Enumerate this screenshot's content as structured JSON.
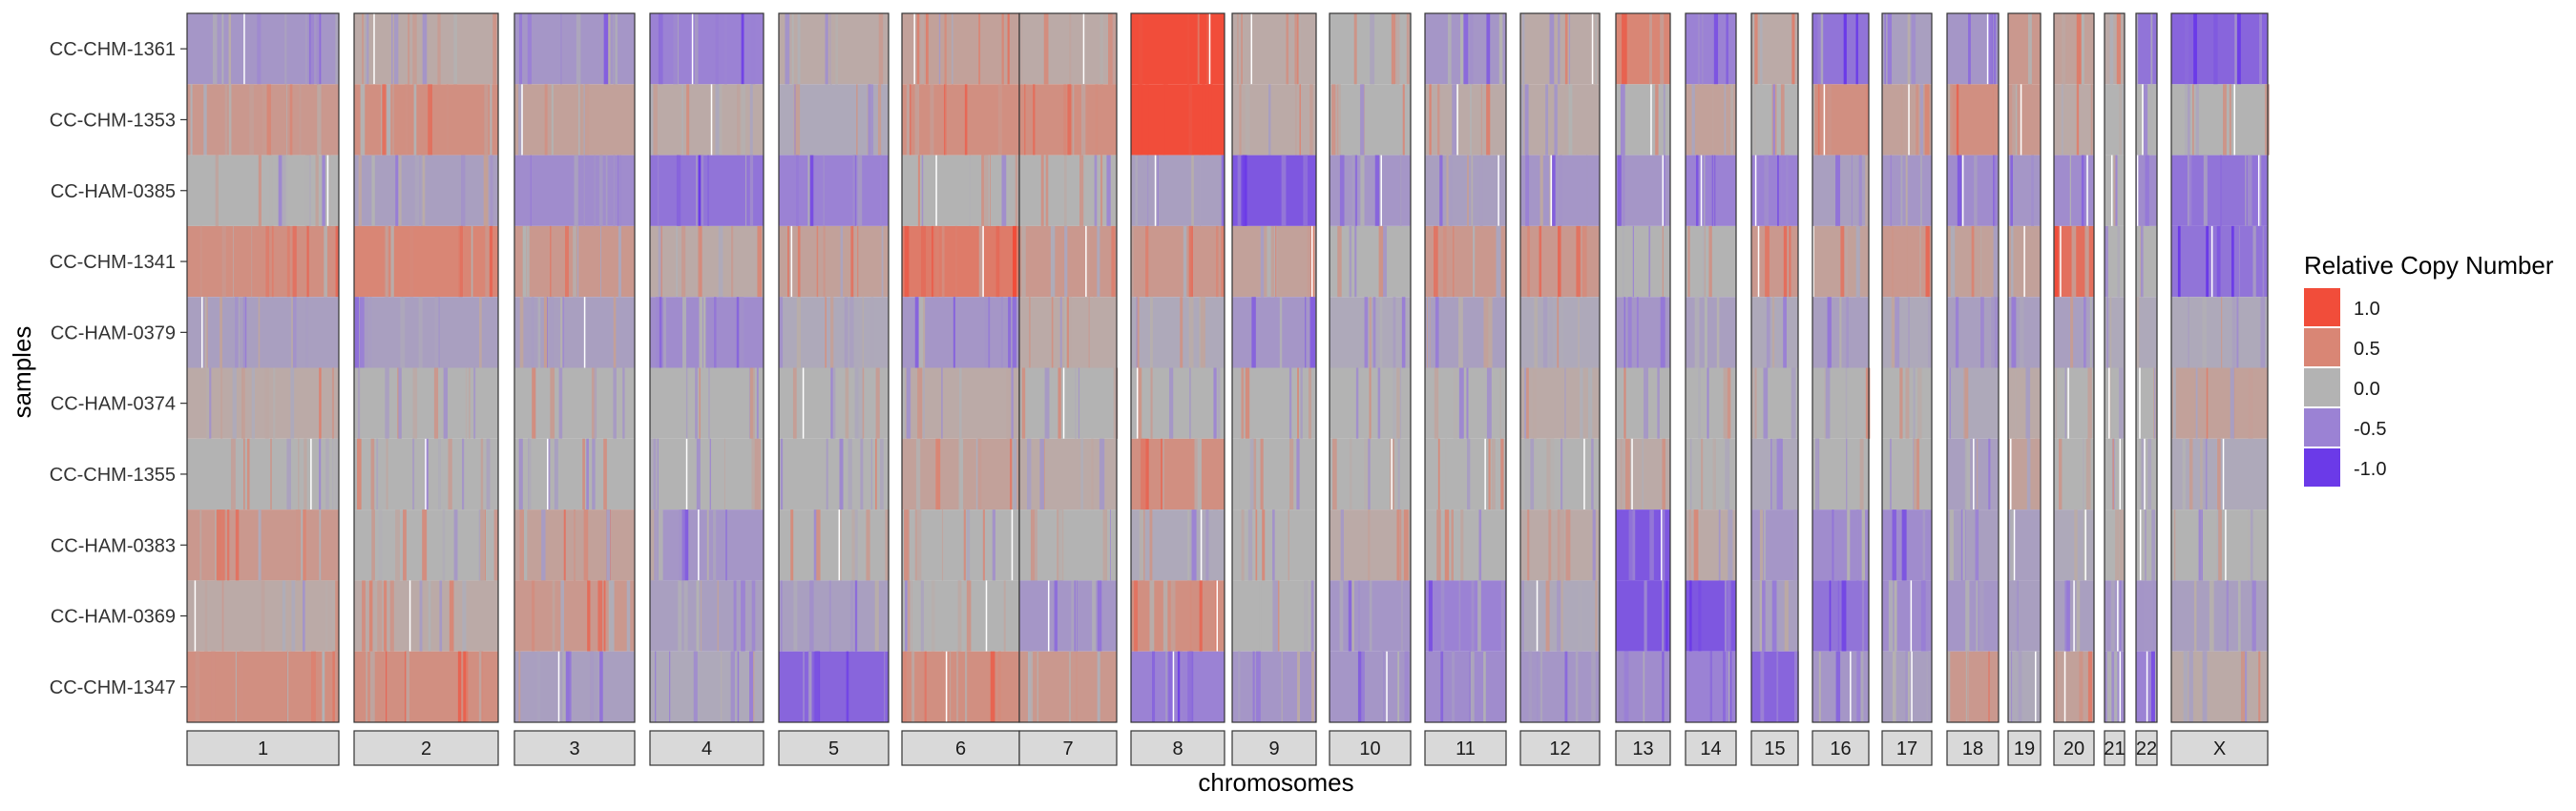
{
  "chart_data": {
    "type": "heatmap",
    "xlabel": "chromosomes",
    "ylabel": "samples",
    "samples": [
      "CC-CHM-1361",
      "CC-CHM-1353",
      "CC-HAM-0385",
      "CC-CHM-1341",
      "CC-HAM-0379",
      "CC-HAM-0374",
      "CC-CHM-1355",
      "CC-HAM-0383",
      "CC-HAM-0369",
      "CC-CHM-1347"
    ],
    "chromosomes": [
      "1",
      "2",
      "3",
      "4",
      "5",
      "6",
      "7",
      "8",
      "9",
      "10",
      "11",
      "12",
      "13",
      "14",
      "15",
      "16",
      "17",
      "18",
      "19",
      "20",
      "21",
      "22",
      "X"
    ],
    "legend": {
      "title": "Relative Copy Number",
      "position": "right",
      "entries": [
        {
          "label": "1.0",
          "value": 1.0,
          "color": "#f14d3a"
        },
        {
          "label": "0.5",
          "value": 0.5,
          "color": "#d98675"
        },
        {
          "label": "0.0",
          "value": 0.0,
          "color": "#b3b3b3"
        },
        {
          "label": "-0.5",
          "value": -0.5,
          "color": "#9b82d4"
        },
        {
          "label": "-1.0",
          "value": -1.0,
          "color": "#6b3ae8"
        }
      ]
    },
    "predominant_values": {
      "CC-CHM-1361": [
        -0.3,
        0.1,
        -0.3,
        -0.5,
        0.1,
        0.2,
        0.1,
        1.0,
        0.1,
        0.0,
        -0.3,
        0.1,
        0.5,
        -0.5,
        0.1,
        -0.6,
        -0.2,
        -0.3,
        0.3,
        0.2,
        0.1,
        -0.6,
        -0.7
      ],
      "CC-CHM-1353": [
        0.3,
        0.4,
        0.2,
        0.1,
        -0.1,
        0.4,
        0.4,
        1.0,
        0.1,
        0.0,
        0.1,
        0.1,
        0.0,
        0.2,
        0.0,
        0.4,
        0.2,
        0.4,
        0.3,
        0.1,
        0.0,
        0.0,
        0.0
      ],
      "CC-HAM-0385": [
        0.0,
        -0.2,
        -0.4,
        -0.6,
        -0.5,
        0.0,
        0.0,
        -0.2,
        -0.8,
        -0.3,
        -0.2,
        -0.3,
        -0.3,
        -0.5,
        -0.5,
        -0.2,
        -0.3,
        -0.4,
        -0.3,
        -0.4,
        0.0,
        -0.4,
        -0.6
      ],
      "CC-CHM-1341": [
        0.4,
        0.5,
        0.3,
        0.1,
        0.2,
        0.6,
        0.3,
        0.3,
        0.2,
        0.0,
        0.3,
        0.3,
        0.0,
        0.0,
        0.3,
        0.2,
        0.3,
        0.2,
        0.2,
        0.7,
        0.0,
        0.0,
        -0.6
      ],
      "CC-HAM-0379": [
        -0.2,
        -0.2,
        -0.2,
        -0.4,
        -0.1,
        -0.3,
        0.1,
        -0.1,
        -0.3,
        -0.1,
        -0.2,
        -0.1,
        -0.3,
        -0.2,
        -0.1,
        -0.2,
        -0.1,
        -0.2,
        -0.2,
        -0.2,
        -0.1,
        -0.1,
        -0.1
      ],
      "CC-HAM-0374": [
        0.1,
        0.0,
        0.0,
        0.0,
        0.0,
        0.1,
        0.0,
        0.0,
        0.0,
        0.0,
        0.0,
        0.1,
        0.0,
        0.0,
        0.0,
        0.0,
        0.0,
        -0.1,
        0.1,
        0.0,
        0.0,
        0.0,
        0.2
      ],
      "CC-CHM-1355": [
        0.0,
        0.0,
        0.0,
        0.0,
        0.0,
        0.2,
        0.1,
        0.4,
        0.0,
        0.0,
        0.0,
        0.0,
        0.1,
        0.0,
        -0.1,
        0.0,
        0.0,
        -0.2,
        0.2,
        0.0,
        0.0,
        0.0,
        -0.1
      ],
      "CC-HAM-0383": [
        0.3,
        0.0,
        0.2,
        -0.3,
        0.0,
        0.0,
        0.0,
        -0.1,
        0.0,
        0.1,
        0.0,
        0.1,
        -0.8,
        0.1,
        -0.3,
        -0.4,
        -0.4,
        -0.2,
        -0.2,
        -0.1,
        0.0,
        0.0,
        0.0
      ],
      "CC-HAM-0369": [
        0.1,
        0.1,
        0.3,
        -0.2,
        -0.2,
        0.0,
        -0.3,
        0.4,
        0.0,
        -0.3,
        -0.5,
        -0.1,
        -0.8,
        -0.8,
        -0.2,
        -0.6,
        -0.4,
        -0.3,
        -0.2,
        -0.2,
        -0.3,
        -0.3,
        -0.2
      ],
      "CC-CHM-1347": [
        0.4,
        0.4,
        -0.2,
        -0.1,
        -0.7,
        0.4,
        0.3,
        -0.5,
        -0.3,
        -0.3,
        -0.4,
        -0.3,
        -0.4,
        -0.5,
        -0.7,
        -0.3,
        -0.2,
        0.3,
        -0.1,
        0.2,
        -0.4,
        -0.5,
        0.1
      ]
    }
  }
}
